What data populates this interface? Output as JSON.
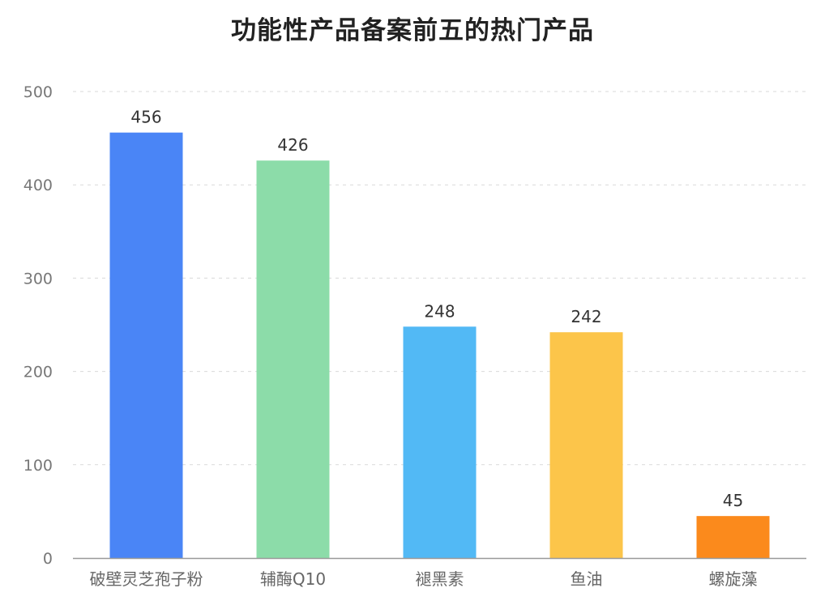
{
  "chart_data": {
    "type": "bar",
    "title": "功能性产品备案前五的热门产品",
    "categories": [
      "破壁灵芝孢子粉",
      "辅酶Q10",
      "褪黑素",
      "鱼油",
      "螺旋藻"
    ],
    "values": [
      456,
      426,
      248,
      242,
      45
    ],
    "colors": [
      "#4a85f6",
      "#8cdca9",
      "#52b9f5",
      "#fcc54a",
      "#fb8a1c"
    ],
    "ylim": [
      0,
      500
    ],
    "yticks": [
      0,
      100,
      200,
      300,
      400,
      500
    ],
    "grid": true,
    "data_labels": true,
    "xlabel": "",
    "ylabel": ""
  }
}
